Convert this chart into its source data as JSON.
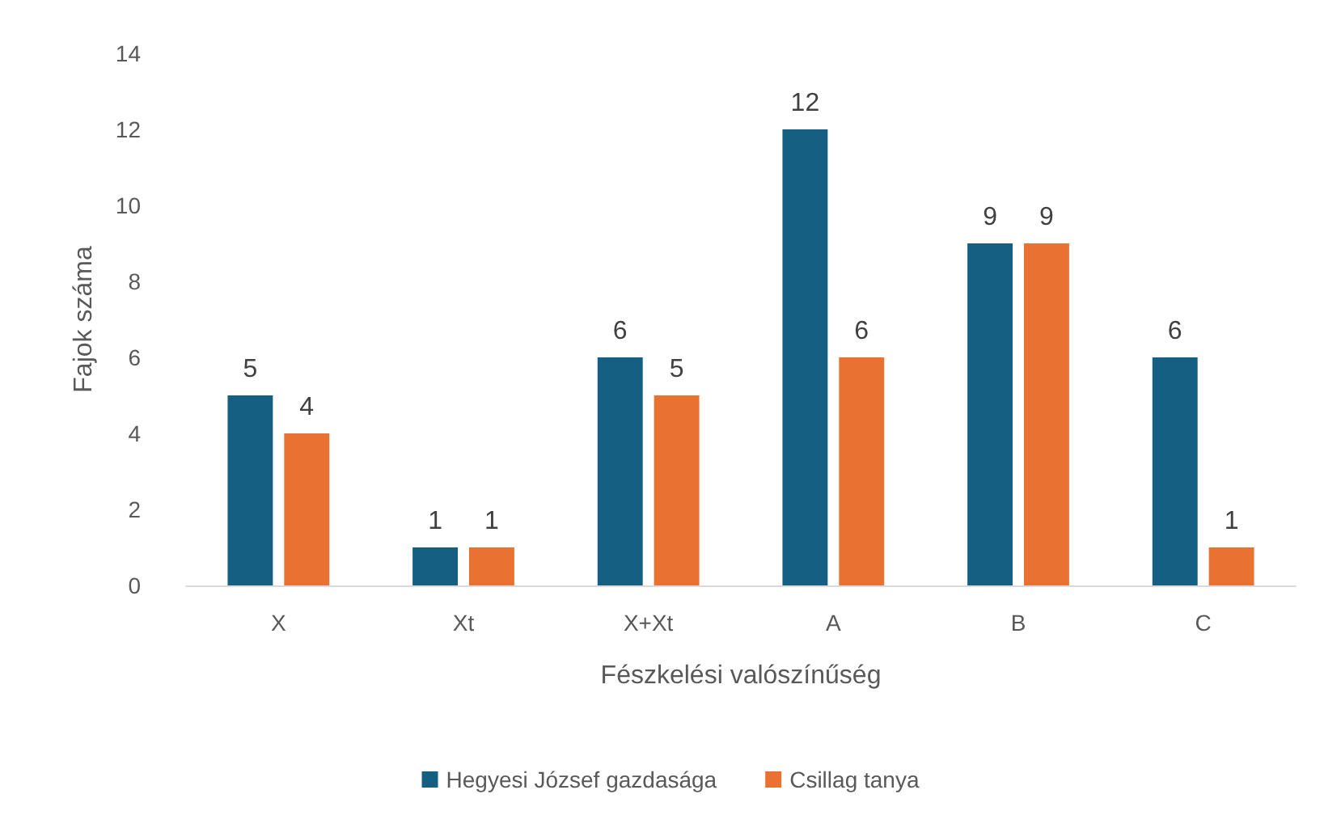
{
  "chart_data": {
    "type": "bar",
    "xlabel": "Fészkelési valószínűség",
    "ylabel": "Fajok száma",
    "categories": [
      "X",
      "Xt",
      "X+Xt",
      "A",
      "B",
      "C"
    ],
    "series": [
      {
        "name": "Hegyesi József gazdasága",
        "color": "#156082",
        "values": [
          5,
          1,
          6,
          12,
          9,
          6
        ]
      },
      {
        "name": "Csillag tanya",
        "color": "#e97132",
        "values": [
          4,
          1,
          5,
          6,
          9,
          1
        ]
      }
    ],
    "ylim": [
      0,
      14
    ],
    "yticks": [
      0,
      2,
      4,
      6,
      8,
      10,
      12,
      14
    ],
    "grid": false,
    "legend": "bottom",
    "data_labels": true
  }
}
